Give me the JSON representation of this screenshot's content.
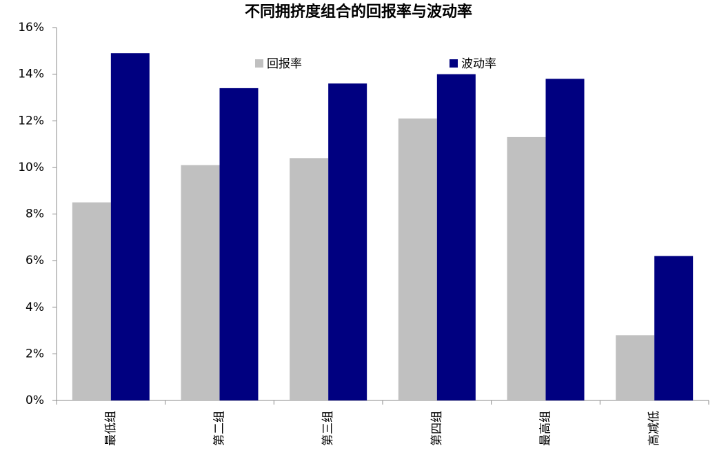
{
  "chart_data": {
    "type": "bar",
    "title": "不同拥挤度组合的回报率与波动率",
    "categories": [
      "最低组",
      "第二组",
      "第三组",
      "第四组",
      "最高组",
      "高减低"
    ],
    "series": [
      {
        "name": "回报率",
        "color": "#c0c0c0",
        "values": [
          8.5,
          10.1,
          10.4,
          12.1,
          11.3,
          2.8
        ]
      },
      {
        "name": "波动率",
        "color": "#000080",
        "values": [
          14.9,
          13.4,
          13.6,
          14.0,
          13.8,
          6.2
        ]
      }
    ],
    "ylim": [
      0,
      16
    ],
    "yticks": [
      {
        "value": 0,
        "label": "0%"
      },
      {
        "value": 2,
        "label": "2%"
      },
      {
        "value": 4,
        "label": "4%"
      },
      {
        "value": 6,
        "label": "6%"
      },
      {
        "value": 8,
        "label": "8%"
      },
      {
        "value": 10,
        "label": "10%"
      },
      {
        "value": 12,
        "label": "12%"
      },
      {
        "value": 14,
        "label": "14%"
      },
      {
        "value": 16,
        "label": "16%"
      }
    ],
    "grid": false,
    "legend": "top"
  }
}
